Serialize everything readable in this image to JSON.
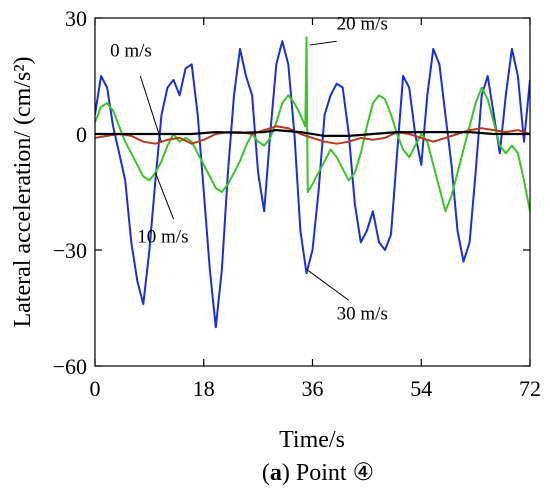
{
  "chart_data": {
    "type": "line",
    "xlabel": "Time/s",
    "ylabel": "Lateral acceleration/ (cm/s²)",
    "xlim": [
      0,
      72
    ],
    "ylim": [
      -60,
      30
    ],
    "x_ticks": [
      "0",
      "18",
      "36",
      "54",
      "72"
    ],
    "y_ticks": [
      "−60",
      "−30",
      "0",
      "30"
    ],
    "grid": false,
    "caption": {
      "letter": "a",
      "open": "(",
      "close": ")",
      "text": " Point ④"
    },
    "series": [
      {
        "name": "0 m/s",
        "color": "#000000",
        "x": [
          0,
          4,
          8,
          12,
          16,
          20,
          24,
          28,
          30,
          34,
          38,
          42,
          46,
          50,
          54,
          58,
          62,
          66,
          70,
          72
        ],
        "y": [
          0,
          0,
          0,
          0,
          0,
          0.5,
          0.3,
          0.5,
          1,
          0.5,
          -0.5,
          -0.5,
          0,
          0.5,
          0.5,
          0.5,
          0.5,
          0,
          0,
          0
        ]
      },
      {
        "name": "10 m/s",
        "color": "#b83a1e",
        "x": [
          0,
          2,
          4,
          6,
          8,
          10,
          12,
          14,
          16,
          18,
          20,
          22,
          24,
          26,
          28,
          30,
          32,
          34,
          36,
          38,
          40,
          42,
          44,
          46,
          48,
          50,
          52,
          54,
          56,
          58,
          60,
          62,
          64,
          66,
          68,
          70,
          72
        ],
        "y": [
          -1,
          -0.5,
          0,
          -0.5,
          -2,
          -2.5,
          -1.5,
          -1,
          -2.5,
          -1.5,
          0,
          0.5,
          0.5,
          0,
          1,
          2,
          1.5,
          0,
          -1,
          -2,
          -2.5,
          -2,
          -1,
          -1.5,
          -1,
          0.5,
          0,
          -1,
          -2,
          -1,
          0,
          1,
          1.5,
          1,
          0.5,
          1,
          0
        ]
      },
      {
        "name": "20 m/s",
        "color": "#3cc428",
        "x": [
          0,
          1,
          2,
          3,
          4,
          5,
          6,
          7,
          8,
          9,
          10,
          11,
          12,
          13,
          14,
          15,
          16,
          17,
          18,
          19,
          20,
          21,
          22,
          23,
          24,
          25,
          26,
          27,
          28,
          29,
          30,
          31,
          32,
          33,
          34,
          34.8,
          35,
          35.2,
          36,
          37,
          38,
          39,
          40,
          41,
          42,
          43,
          44,
          45,
          46,
          47,
          48,
          49,
          50,
          51,
          52,
          53,
          54,
          55,
          56,
          57,
          58,
          59,
          60,
          61,
          62,
          63,
          64,
          65,
          66,
          67,
          68,
          69,
          70,
          71,
          72
        ],
        "y": [
          3,
          7,
          8,
          6,
          2,
          -2,
          -5,
          -8,
          -11,
          -12,
          -10,
          -7,
          -3,
          0,
          -2,
          -1,
          -2,
          -5,
          -8,
          -11,
          -14,
          -15,
          -13,
          -10,
          -7,
          -3,
          0,
          -2,
          -3,
          -1,
          3,
          8,
          10,
          8,
          5,
          2,
          25,
          -15,
          -13,
          -10,
          -7,
          -4,
          -6,
          -9,
          -12,
          -10,
          -5,
          2,
          8,
          10,
          9,
          5,
          0,
          -4,
          -6,
          -3,
          0,
          -2,
          -8,
          -14,
          -20,
          -16,
          -10,
          -4,
          2,
          8,
          12,
          9,
          3,
          -3,
          -5,
          -3,
          -5,
          -12,
          -20
        ]
      },
      {
        "name": "30 m/s",
        "color": "#1a2fd6",
        "x": [
          0,
          1,
          2,
          3,
          4,
          5,
          6,
          7,
          8,
          9,
          10,
          11,
          12,
          13,
          14,
          15,
          16,
          17,
          18,
          19,
          20,
          21,
          22,
          23,
          24,
          25,
          26,
          27,
          28,
          29,
          30,
          31,
          32,
          33,
          34,
          35,
          36,
          37,
          38,
          39,
          40,
          41,
          42,
          43,
          44,
          45,
          46,
          47,
          48,
          49,
          50,
          51,
          52,
          53,
          54,
          55,
          56,
          57,
          58,
          59,
          60,
          61,
          62,
          63,
          64,
          65,
          66,
          67,
          68,
          69,
          70,
          71,
          72
        ],
        "y": [
          5,
          15,
          12,
          2,
          -5,
          -12,
          -28,
          -38,
          -44,
          -30,
          -12,
          5,
          12,
          14,
          10,
          17,
          18,
          5,
          -15,
          -35,
          -50,
          -35,
          -10,
          10,
          22,
          15,
          10,
          -10,
          -20,
          0,
          18,
          24,
          18,
          0,
          -25,
          -36,
          -30,
          -15,
          5,
          10,
          13,
          12,
          0,
          -18,
          -28,
          -25,
          -20,
          -28,
          -30,
          -26,
          -5,
          15,
          12,
          0,
          -8,
          10,
          22,
          18,
          5,
          -8,
          -25,
          -33,
          -28,
          -10,
          10,
          15,
          5,
          -5,
          10,
          22,
          15,
          -2,
          14
        ]
      }
    ],
    "annotations": [
      {
        "text": "0 m/s",
        "series": "0 m/s"
      },
      {
        "text": "10 m/s",
        "series": "10 m/s"
      },
      {
        "text": "20 m/s",
        "series": "20 m/s"
      },
      {
        "text": "30 m/s",
        "series": "30 m/s"
      }
    ]
  }
}
